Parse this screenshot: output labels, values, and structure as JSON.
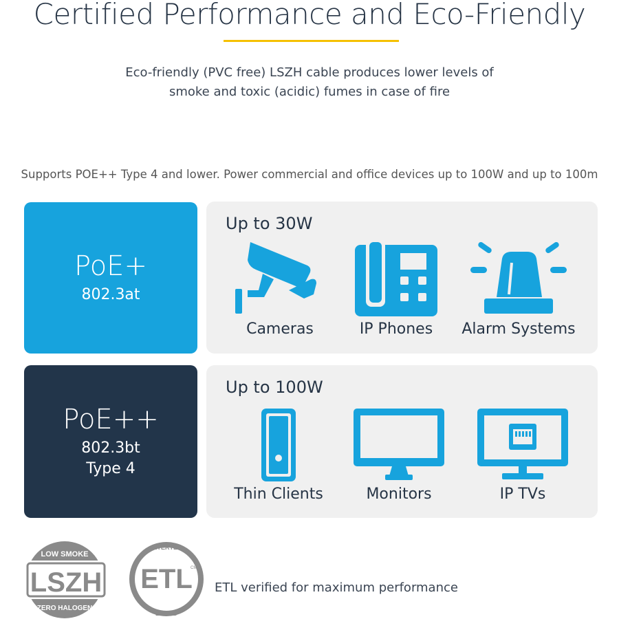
{
  "header": {
    "title": "Certified Performance and Eco-Friendly",
    "subtitle_line1": "Eco-friendly (PVC free) LSZH cable produces lower levels of",
    "subtitle_line2": "smoke and toxic (acidic) fumes in case of fire"
  },
  "supports_text": "Supports POE++ Type 4 and lower. Power commercial and office devices up to 100W and up to 100m",
  "colors": {
    "accent_blue": "#17a3dd",
    "navy": "#22354a",
    "underline_yellow": "#f5c000",
    "panel_gray": "#f0f0f0",
    "logo_gray": "#8a8a8a"
  },
  "tiers": [
    {
      "name": "PoE+",
      "standard": "802.3at",
      "type": "",
      "power": "Up to 30W",
      "devices": [
        {
          "label": "Cameras",
          "icon": "security-camera-icon"
        },
        {
          "label": "IP Phones",
          "icon": "desk-phone-icon"
        },
        {
          "label": "Alarm Systems",
          "icon": "alarm-beacon-icon"
        }
      ]
    },
    {
      "name": "PoE++",
      "standard": "802.3bt",
      "type": "Type 4",
      "power": "Up to 100W",
      "devices": [
        {
          "label": "Thin Clients",
          "icon": "thin-client-icon"
        },
        {
          "label": "Monitors",
          "icon": "monitor-icon"
        },
        {
          "label": "IP TVs",
          "icon": "ip-tv-icon"
        }
      ]
    }
  ],
  "logos": {
    "lszh": {
      "main": "LSZH",
      "top": "LOW SMOKE",
      "bottom": "ZERO HALOGEN"
    },
    "etl": {
      "main": "ETL",
      "top": "INTERTEK",
      "bottom": "LISTED",
      "mark": "CM"
    }
  },
  "etl_text": "ETL verified for maximum performance"
}
